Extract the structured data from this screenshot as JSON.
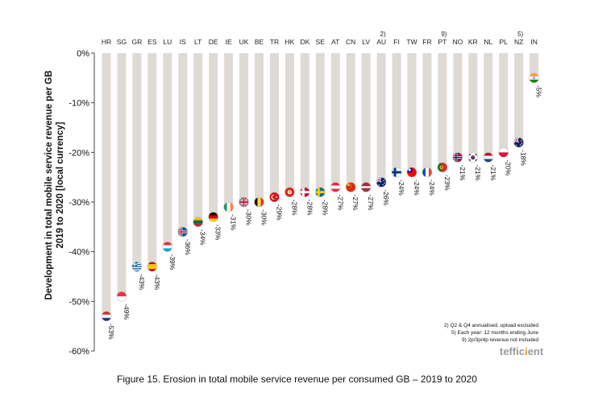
{
  "chart_data": {
    "type": "bar",
    "ylabel_lines": [
      "Development in total mobile service revenue per GB",
      "2019 to 2020 [local currency]"
    ],
    "ylim": [
      -60,
      0
    ],
    "yticks": [
      0,
      -10,
      -20,
      -30,
      -40,
      -50,
      -60
    ],
    "ytick_labels": [
      "0%",
      "-10%",
      "-20%",
      "-30%",
      "-40%",
      "-50%",
      "-60%"
    ],
    "categories": [
      "HR",
      "SG",
      "GR",
      "ES",
      "LU",
      "IS",
      "LT",
      "DE",
      "IE",
      "UK",
      "BE",
      "TR",
      "HK",
      "DK",
      "SE",
      "AT",
      "CN",
      "LV",
      "AU",
      "FI",
      "TW",
      "FR",
      "PT",
      "NO",
      "KR",
      "NL",
      "PL",
      "NZ",
      "IN"
    ],
    "category_notes": [
      "",
      "",
      "",
      "",
      "",
      "",
      "",
      "",
      "",
      "",
      "",
      "",
      "",
      "",
      "",
      "",
      "",
      "",
      "2)",
      "",
      "",
      "",
      "9)",
      "",
      "",
      "",
      "",
      "5)",
      ""
    ],
    "values": [
      -53,
      -49,
      -43,
      -43,
      -39,
      -36,
      -34,
      -33,
      -31,
      -30,
      -30,
      -29,
      -28,
      -28,
      -28,
      -27,
      -27,
      -27,
      -26,
      -24,
      -24,
      -24,
      -23,
      -21,
      -21,
      -21,
      -20,
      -18,
      -5
    ],
    "value_labels": [
      "-53%",
      "-49%",
      "-43%",
      "-43%",
      "-39%",
      "-36%",
      "-34%",
      "-33%",
      "-31%",
      "-30%",
      "-30%",
      "-29%",
      "-28%",
      "-28%",
      "-28%",
      "-27%",
      "-27%",
      "-27%",
      "-26%",
      "-24%",
      "-24%",
      "-24%",
      "-23%",
      "-21%",
      "-21%",
      "-21%",
      "-20%",
      "-18%",
      "-5%"
    ],
    "footnotes": [
      "2) Q2 & Q4 annualised, upload excluded",
      "5) Each year: 12 months ending June",
      "9) 2p/3p/4p revenue not included"
    ],
    "logo": {
      "part1": "teffic",
      "part2": "i",
      "part3": "ent"
    },
    "colors": {
      "bar": "#dedad5",
      "axis": "#444444",
      "logo_grey": "#9a9a9a",
      "logo_orange": "#e39a3b"
    }
  },
  "figure_caption": "Figure 15. Erosion in total mobile service revenue per consumed GB – 2019 to 2020"
}
